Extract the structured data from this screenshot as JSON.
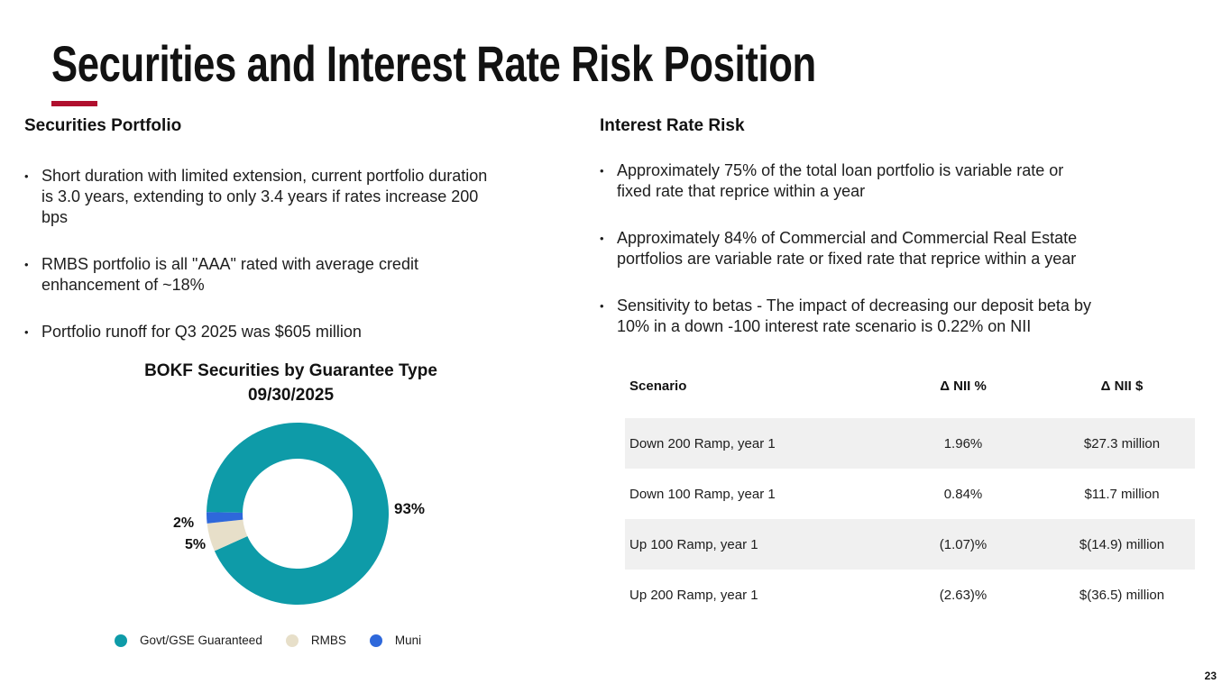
{
  "title": "Securities and Interest Rate Risk Position",
  "accent_color": "#b0102e",
  "page_number": "23",
  "securities": {
    "heading": "Securities Portfolio",
    "bullets": [
      {
        "lines": [
          "Short duration with limited extension, current portfolio duration",
          "is 3.0 years, extending to only 3.4 years if rates increase 200",
          "bps"
        ]
      },
      {
        "lines": [
          "RMBS portfolio is all \"AAA\" rated with average credit",
          "enhancement of  ~18%"
        ]
      },
      {
        "lines": [
          "Portfolio runoff for Q3 2025 was $605 million"
        ]
      }
    ]
  },
  "interest_rate_risk": {
    "heading": "Interest Rate Risk",
    "bullets": [
      {
        "lines": [
          "Approximately 75% of the total loan portfolio is variable rate or",
          "fixed rate that reprice within a year"
        ]
      },
      {
        "lines": [
          "Approximately 84% of Commercial and Commercial Real Estate",
          "portfolios are variable rate or fixed rate that reprice within a year"
        ]
      },
      {
        "lines": [
          "Sensitivity to betas - The impact of decreasing our deposit beta by",
          "10% in a down -100 interest rate scenario is 0.22% on NII"
        ]
      }
    ]
  },
  "chart_data": {
    "type": "pie",
    "donut": true,
    "title": "BOKF Securities by Guarantee Type",
    "subtitle": "09/30/2025",
    "start_angle_deg": 271,
    "legend_position": "bottom",
    "slices": [
      {
        "name": "Govt/GSE Guaranteed",
        "value": 93,
        "label": "93%",
        "color": "#0e9ba8"
      },
      {
        "name": "RMBS",
        "value": 5,
        "label": "5%",
        "color": "#e7dfc9"
      },
      {
        "name": "Muni",
        "value": 2,
        "label": "2%",
        "color": "#2e68db"
      }
    ]
  },
  "table": {
    "headers": [
      "Scenario",
      "Δ NII %",
      "Δ NII $"
    ],
    "rows": [
      [
        "Down 200 Ramp, year 1",
        "1.96%",
        "$27.3 million"
      ],
      [
        "Down 100 Ramp, year 1",
        "0.84%",
        "$11.7 million"
      ],
      [
        "Up 100 Ramp, year 1",
        "(1.07)%",
        "$(14.9) million"
      ],
      [
        "Up 200 Ramp, year 1",
        "(2.63)%",
        "$(36.5) million"
      ]
    ]
  }
}
